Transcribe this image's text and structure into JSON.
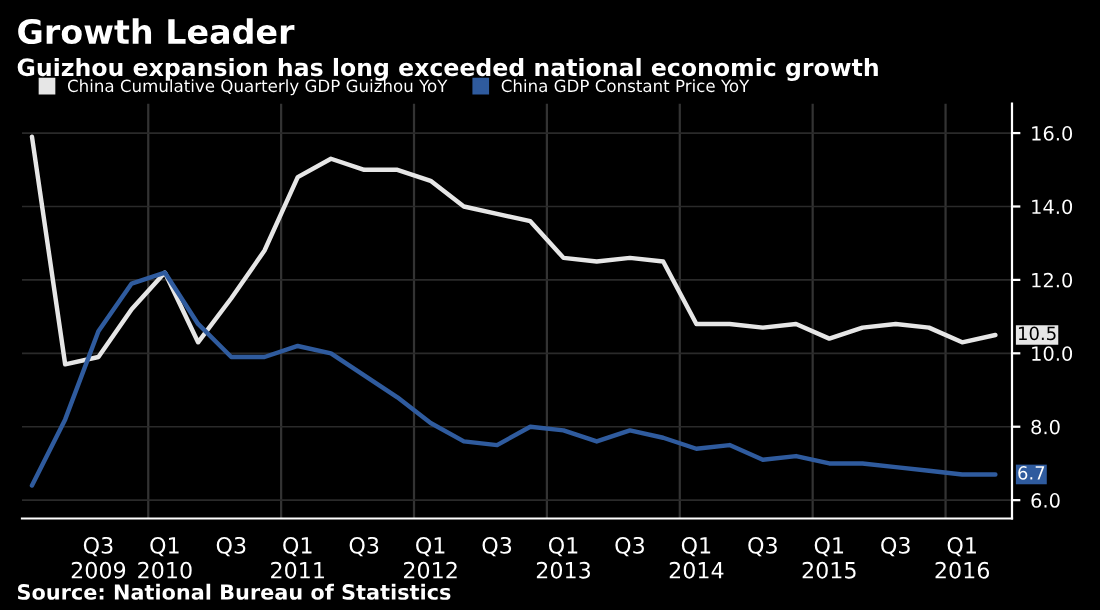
{
  "chart_data": {
    "type": "line",
    "title": "Growth Leader",
    "subtitle": "Guizhou expansion has long exceeded national economic growth",
    "categories": [
      null,
      null,
      "Q3\n2009",
      null,
      "Q1\n2010",
      null,
      "Q3",
      null,
      "Q1\n2011",
      null,
      "Q3",
      null,
      "Q1\n2012",
      null,
      "Q3",
      null,
      "Q1\n2013",
      null,
      "Q3",
      null,
      "Q1\n2014",
      null,
      "Q3",
      null,
      "Q1\n2015",
      null,
      "Q3",
      null,
      "Q1\n2016",
      null
    ],
    "series": [
      {
        "name": "China Cumulative Quarterly GDP Guizhou YoY",
        "color": "#e6e6e6",
        "values": [
          15.9,
          9.7,
          9.9,
          11.2,
          12.2,
          10.3,
          11.5,
          12.8,
          14.8,
          15.3,
          15.0,
          15.0,
          14.7,
          14.0,
          13.8,
          13.6,
          12.6,
          12.5,
          12.6,
          12.5,
          10.8,
          10.8,
          10.7,
          10.8,
          10.4,
          10.7,
          10.8,
          10.7,
          10.3,
          10.5
        ],
        "value_labels": [
          null,
          null,
          null,
          null,
          null,
          null,
          null,
          null,
          null,
          null,
          null,
          null,
          null,
          null,
          null,
          null,
          null,
          null,
          null,
          null,
          null,
          null,
          null,
          null,
          null,
          null,
          null,
          null,
          null,
          "10.5"
        ]
      },
      {
        "name": "China GDP Constant Price YoY",
        "color": "#2f5b9e",
        "values": [
          6.4,
          8.2,
          10.6,
          11.9,
          12.2,
          10.8,
          9.9,
          9.9,
          10.2,
          10.0,
          9.4,
          8.8,
          8.1,
          7.6,
          7.5,
          8.0,
          7.9,
          7.6,
          7.9,
          7.7,
          7.4,
          7.5,
          7.1,
          7.2,
          7.0,
          7.0,
          6.9,
          6.8,
          6.7,
          6.7
        ],
        "value_labels": [
          null,
          null,
          null,
          null,
          null,
          null,
          null,
          null,
          null,
          null,
          null,
          null,
          null,
          null,
          null,
          null,
          null,
          null,
          null,
          null,
          null,
          null,
          null,
          null,
          null,
          null,
          null,
          null,
          null,
          "6.7"
        ]
      }
    ],
    "ylim": [
      5.5,
      16.8
    ],
    "yticks": [
      {
        "value": 6,
        "label": "6.0"
      },
      {
        "value": 8,
        "label": "8.0"
      },
      {
        "value": 10,
        "label": "10.0"
      },
      {
        "value": 12,
        "label": "12.0"
      },
      {
        "value": 14,
        "label": "14.0"
      },
      {
        "value": 16,
        "label": "16.0"
      }
    ],
    "grid": true,
    "legend": "top left",
    "marker": "none",
    "line_style": "solid",
    "annotations": [
      "Source: National Bureau of Statistics"
    ]
  }
}
